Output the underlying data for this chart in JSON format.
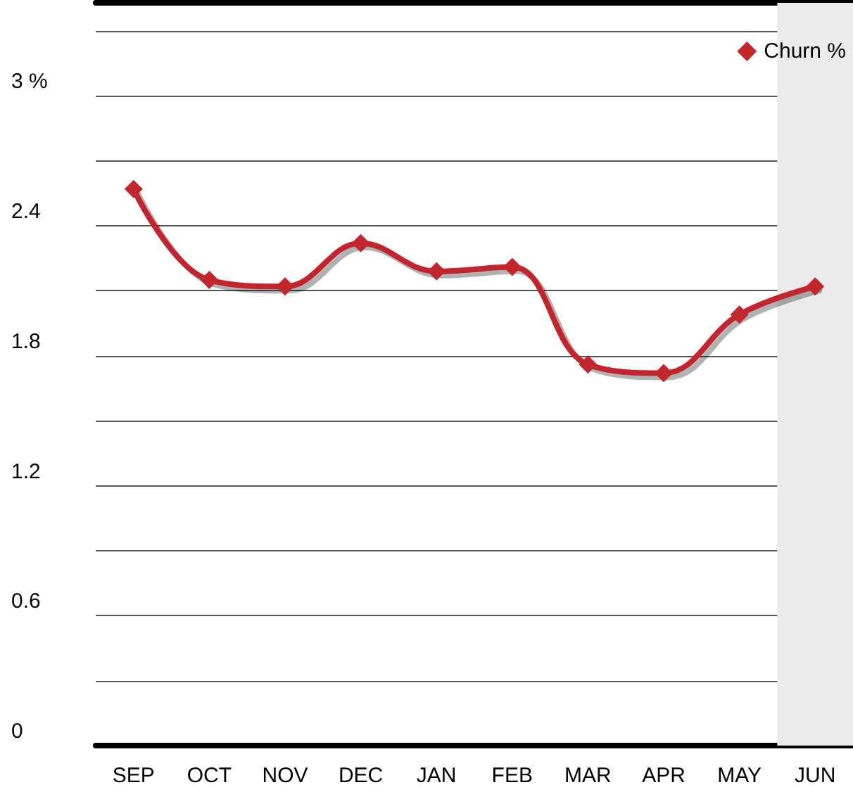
{
  "chart_data": {
    "type": "line",
    "categories": [
      "SEP",
      "OCT",
      "NOV",
      "DEC",
      "JAN",
      "FEB",
      "MAR",
      "APR",
      "MAY",
      "JUN"
    ],
    "series": [
      {
        "name": "Churn %",
        "color": "#c1272d",
        "values": [
          2.57,
          2.15,
          2.12,
          2.32,
          2.19,
          2.21,
          1.76,
          1.72,
          1.99,
          2.12
        ]
      }
    ],
    "ylim": [
      0,
      3.43
    ],
    "yticks": [
      0,
      {
        "value": 0.3,
        "label": null
      },
      0.6,
      {
        "value": 0.9,
        "label": null
      },
      1.2,
      {
        "value": 1.5,
        "label": null
      },
      1.8,
      {
        "value": 2.1,
        "label": null
      },
      2.4,
      {
        "value": 2.7,
        "label": null
      },
      {
        "value": 3,
        "label": "3 %"
      },
      {
        "value": 3.3,
        "label": null
      }
    ],
    "bands": [
      {
        "axis": "x",
        "from": "JUN",
        "to": "JUN",
        "color": "#ebebeb"
      }
    ],
    "grid": "y",
    "legend": "top right",
    "marker": "diamond",
    "line_style": "solid"
  }
}
